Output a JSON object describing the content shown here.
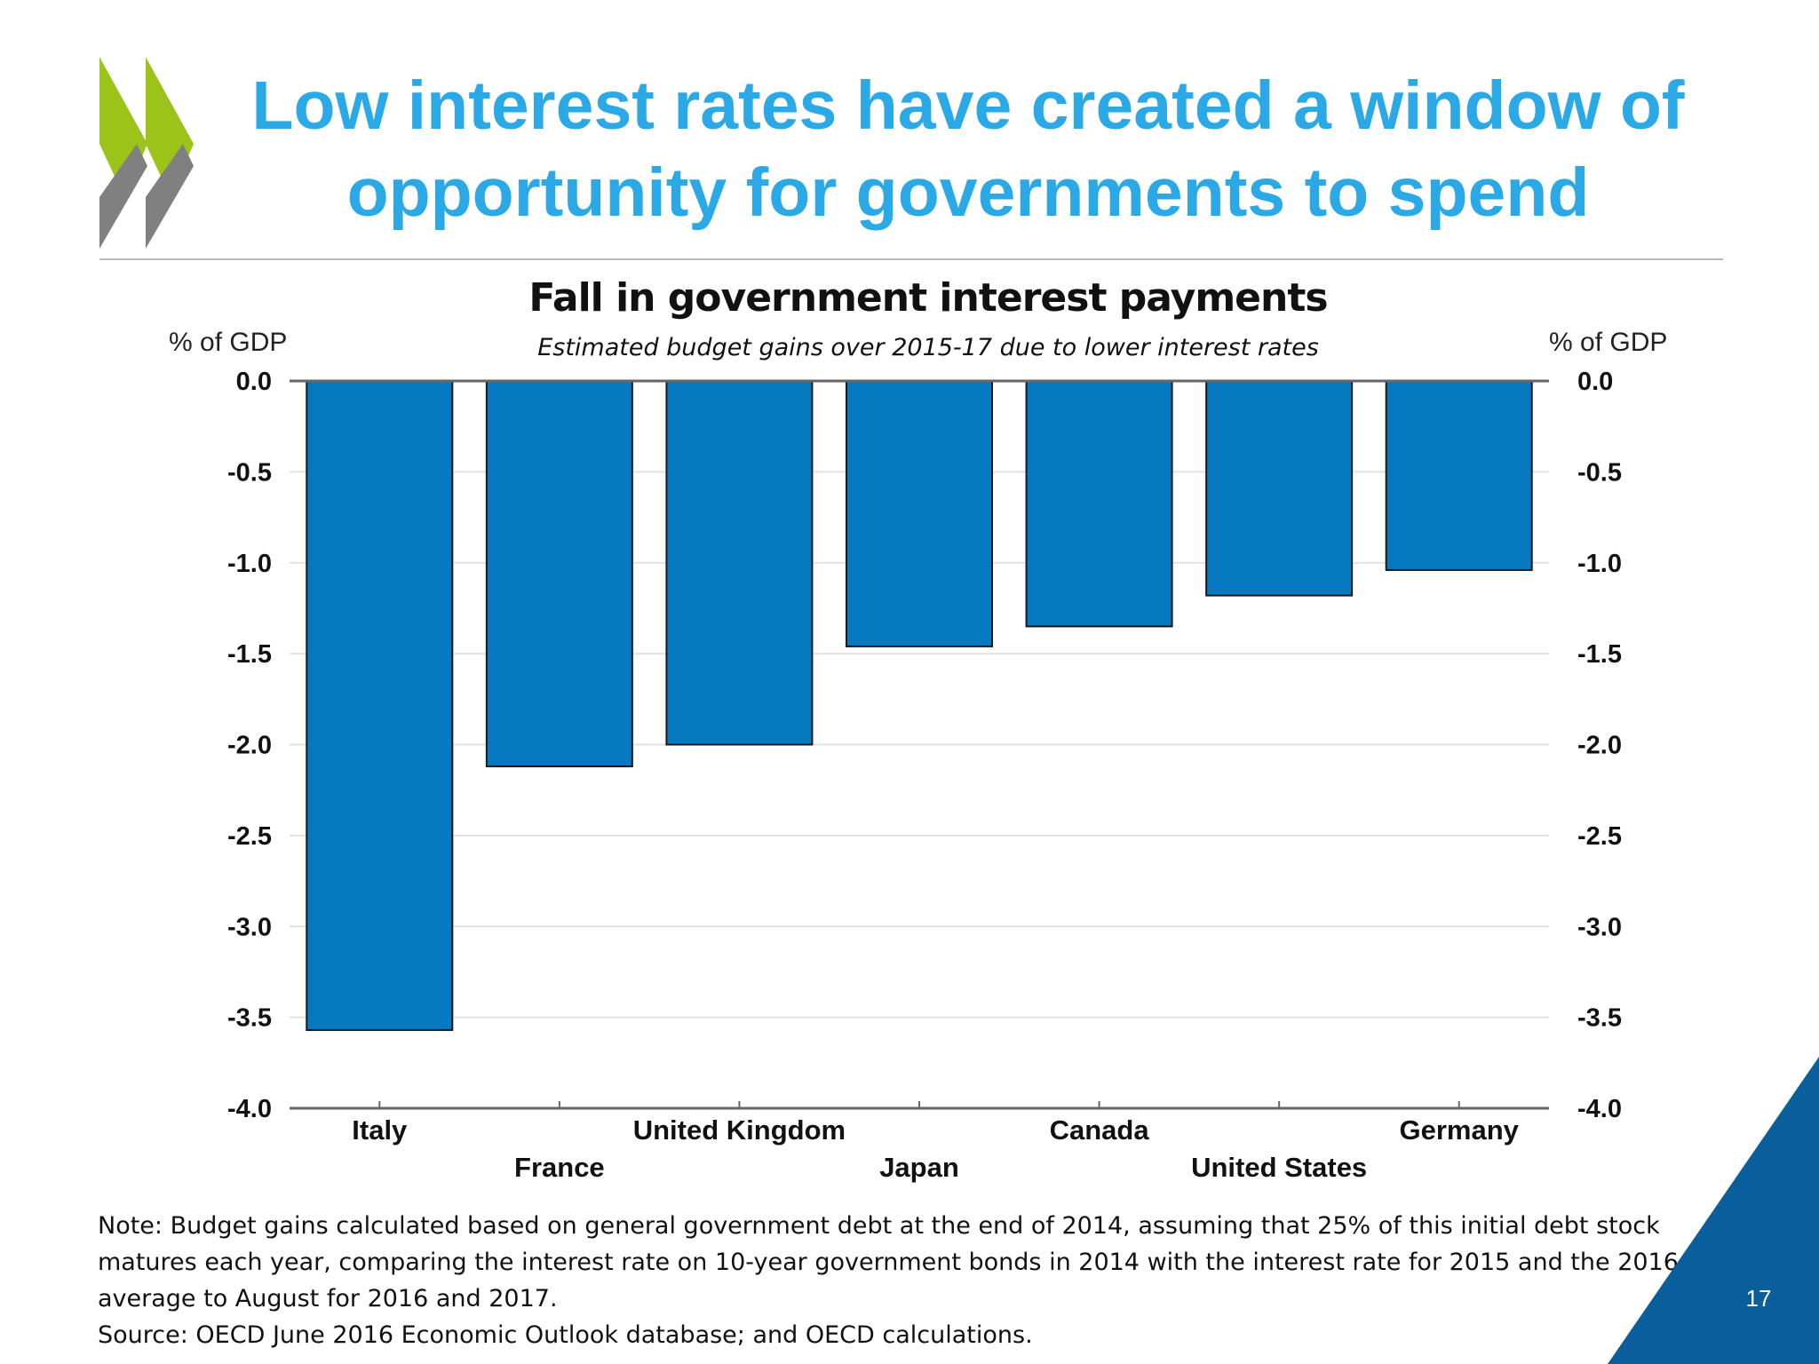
{
  "slide": {
    "title_line1": "Low interest rates have created a window of",
    "title_line2": "opportunity for governments to spend",
    "page_number": "17"
  },
  "logo": {
    "icon": "oecd-chevrons-icon",
    "colors": [
      "#9cc31a",
      "#7f7f7f"
    ]
  },
  "chart_data": {
    "type": "bar",
    "title": "Fall in government interest payments",
    "subtitle": "Estimated budget gains over 2015-17 due to lower interest rates",
    "ylabel_left": "% of GDP",
    "ylabel_right": "% of GDP",
    "ylim": [
      -4.0,
      0.0
    ],
    "yticks": [
      0.0,
      -0.5,
      -1.0,
      -1.5,
      -2.0,
      -2.5,
      -3.0,
      -3.5,
      -4.0
    ],
    "ytick_labels": [
      "0.0",
      "-0.5",
      "-1.0",
      "-1.5",
      "-2.0",
      "-2.5",
      "-3.0",
      "-3.5",
      "-4.0"
    ],
    "categories": [
      "Italy",
      "France",
      "United Kingdom",
      "Japan",
      "Canada",
      "United States",
      "Germany"
    ],
    "values": [
      -3.57,
      -2.12,
      -2.0,
      -1.46,
      -1.35,
      -1.18,
      -1.04
    ],
    "bar_color": "#0679c0",
    "grid": true
  },
  "footnote": {
    "note": "Note: Budget gains calculated based on general government debt at the end of 2014, assuming that 25% of this initial debt stock matures each year, comparing the interest rate on 10-year government bonds in 2014 with the interest rate for 2015 and the 2016 average to August for 2016 and 2017.",
    "source": "Source: OECD June 2016 Economic Outlook database; and OECD calculations."
  },
  "colors": {
    "title": "#2ba8e6",
    "corner": "#0b5e9c"
  }
}
